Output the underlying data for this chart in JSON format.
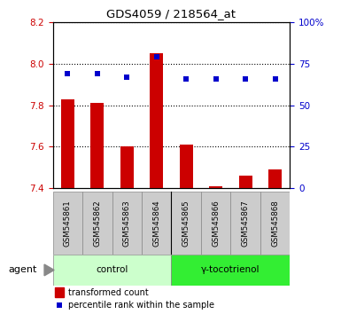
{
  "title": "GDS4059 / 218564_at",
  "samples": [
    "GSM545861",
    "GSM545862",
    "GSM545863",
    "GSM545864",
    "GSM545865",
    "GSM545866",
    "GSM545867",
    "GSM545868"
  ],
  "bar_values": [
    7.83,
    7.81,
    7.6,
    8.05,
    7.61,
    7.41,
    7.46,
    7.49
  ],
  "bar_base": 7.4,
  "percentile_values": [
    69,
    69,
    67,
    79,
    66,
    66,
    66,
    66
  ],
  "ylim_left": [
    7.4,
    8.2
  ],
  "ylim_right": [
    0,
    100
  ],
  "yticks_left": [
    7.4,
    7.6,
    7.8,
    8.0,
    8.2
  ],
  "yticks_right": [
    0,
    25,
    50,
    75,
    100
  ],
  "bar_color": "#cc0000",
  "dot_color": "#0000cc",
  "groups": [
    {
      "label": "control",
      "indices": [
        0,
        1,
        2,
        3
      ],
      "color": "#ccffcc"
    },
    {
      "label": "γ-tocotrienol",
      "indices": [
        4,
        5,
        6,
        7
      ],
      "color": "#33ee33"
    }
  ],
  "agent_label": "agent",
  "legend_bar_label": "transformed count",
  "legend_dot_label": "percentile rank within the sample",
  "sample_box_color": "#cccccc",
  "figsize": [
    3.85,
    3.54
  ],
  "dpi": 100
}
